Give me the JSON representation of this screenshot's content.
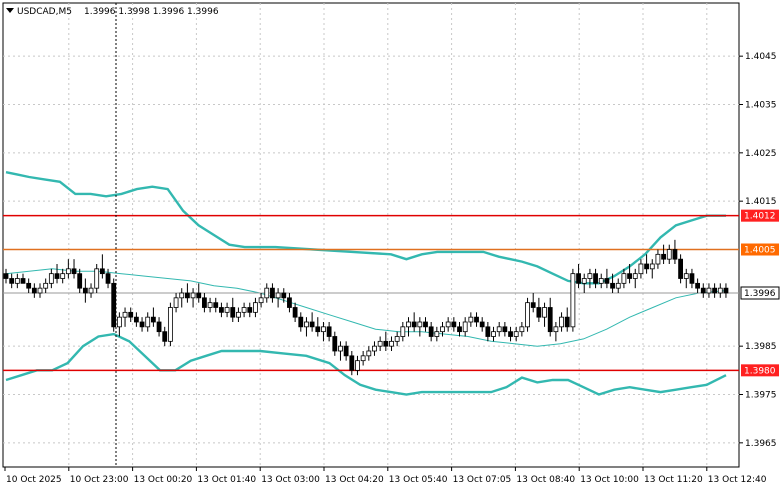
{
  "header": {
    "symbol": "USDCAD,M5",
    "ohlc": "1.3996 1.3998 1.3996 1.3996",
    "dropdown_icon": "triangle-down-icon"
  },
  "chart_data": {
    "type": "candlestick",
    "symbol": "USDCAD",
    "timeframe": "M5",
    "ylim": [
      1.396,
      1.4056
    ],
    "y_ticks": [
      "1.4045",
      "1.4035",
      "1.4025",
      "1.4015",
      "1.3985",
      "1.3975",
      "1.3965"
    ],
    "x_ticks": [
      "10 Oct 2025",
      "10 Oct 23:00",
      "13 Oct 00:20",
      "13 Oct 01:40",
      "13 Oct 03:00",
      "13 Oct 04:20",
      "13 Oct 05:40",
      "13 Oct 07:05",
      "13 Oct 08:40",
      "13 Oct 10:00",
      "13 Oct 11:20",
      "13 Oct 12:40"
    ],
    "levels": [
      {
        "label": "1.4012",
        "value": 1.4012,
        "color": "#e00000",
        "bg": "#ff2020",
        "text_color": "#ffffff"
      },
      {
        "label": "1.4005",
        "value": 1.4005,
        "color": "#e07020",
        "bg": "#ff6a00",
        "text_color": "#ffffff"
      },
      {
        "label": "1.3980",
        "value": 1.398,
        "color": "#e00000",
        "bg": "#ff2020",
        "text_color": "#ffffff"
      }
    ],
    "current_price": {
      "label": "1.3996",
      "value": 1.3996,
      "bg": "#ffffff",
      "text_color": "#000000"
    },
    "colors": {
      "band": "#33b8b0",
      "middle": "#33b8b0",
      "bull": "#000000",
      "bear": "#000000",
      "bull_body": "#ffffff",
      "bear_body": "#000000",
      "grid": "#c8c8c8",
      "vline": "#000000"
    },
    "bands": {
      "upper": [
        [
          0,
          1.4021
        ],
        [
          3,
          1.40205
        ],
        [
          6,
          1.402
        ],
        [
          10,
          1.40195
        ],
        [
          14,
          1.4019
        ],
        [
          18,
          1.40165
        ],
        [
          22,
          1.40165
        ],
        [
          26,
          1.4016
        ],
        [
          30,
          1.40165
        ],
        [
          34,
          1.40175
        ],
        [
          38,
          1.4018
        ],
        [
          42,
          1.40175
        ],
        [
          46,
          1.4013
        ],
        [
          50,
          1.401
        ],
        [
          54,
          1.4008
        ],
        [
          58,
          1.4006
        ],
        [
          62,
          1.40055
        ],
        [
          70,
          1.40055
        ],
        [
          80,
          1.4005
        ],
        [
          90,
          1.40045
        ],
        [
          100,
          1.4004
        ],
        [
          104,
          1.4003
        ],
        [
          108,
          1.4004
        ],
        [
          112,
          1.40045
        ],
        [
          118,
          1.40045
        ],
        [
          124,
          1.40045
        ],
        [
          128,
          1.40035
        ],
        [
          134,
          1.40025
        ],
        [
          138,
          1.40015
        ],
        [
          142,
          1.4
        ],
        [
          146,
          1.39985
        ],
        [
          150,
          1.3998
        ],
        [
          154,
          1.3998
        ],
        [
          158,
          1.39995
        ],
        [
          162,
          1.40015
        ],
        [
          166,
          1.4004
        ],
        [
          170,
          1.40075
        ],
        [
          174,
          1.401
        ],
        [
          178,
          1.4011
        ],
        [
          182,
          1.4012
        ],
        [
          187,
          1.4012
        ]
      ],
      "middle": [
        [
          0,
          1.4
        ],
        [
          6,
          1.40005
        ],
        [
          12,
          1.4001
        ],
        [
          18,
          1.40005
        ],
        [
          24,
          1.40005
        ],
        [
          30,
          1.4
        ],
        [
          36,
          1.39995
        ],
        [
          42,
          1.3999
        ],
        [
          48,
          1.39985
        ],
        [
          54,
          1.39975
        ],
        [
          60,
          1.3997
        ],
        [
          66,
          1.3996
        ],
        [
          72,
          1.39945
        ],
        [
          78,
          1.3993
        ],
        [
          84,
          1.39915
        ],
        [
          90,
          1.399
        ],
        [
          96,
          1.39885
        ],
        [
          102,
          1.3988
        ],
        [
          108,
          1.3988
        ],
        [
          114,
          1.39875
        ],
        [
          120,
          1.3987
        ],
        [
          126,
          1.3986
        ],
        [
          132,
          1.39855
        ],
        [
          138,
          1.3985
        ],
        [
          144,
          1.39855
        ],
        [
          150,
          1.39865
        ],
        [
          156,
          1.39885
        ],
        [
          162,
          1.3991
        ],
        [
          168,
          1.3993
        ],
        [
          174,
          1.3995
        ],
        [
          180,
          1.3996
        ],
        [
          187,
          1.39965
        ]
      ],
      "lower": [
        [
          0,
          1.3978
        ],
        [
          4,
          1.3979
        ],
        [
          8,
          1.398
        ],
        [
          12,
          1.398
        ],
        [
          16,
          1.39815
        ],
        [
          20,
          1.3985
        ],
        [
          24,
          1.3987
        ],
        [
          28,
          1.39875
        ],
        [
          32,
          1.3986
        ],
        [
          36,
          1.3983
        ],
        [
          40,
          1.398
        ],
        [
          44,
          1.398
        ],
        [
          48,
          1.3982
        ],
        [
          52,
          1.3983
        ],
        [
          56,
          1.3984
        ],
        [
          60,
          1.3984
        ],
        [
          66,
          1.3984
        ],
        [
          72,
          1.39835
        ],
        [
          78,
          1.3983
        ],
        [
          84,
          1.39815
        ],
        [
          88,
          1.3979
        ],
        [
          92,
          1.3977
        ],
        [
          96,
          1.3976
        ],
        [
          100,
          1.39755
        ],
        [
          104,
          1.3975
        ],
        [
          108,
          1.39755
        ],
        [
          114,
          1.39755
        ],
        [
          120,
          1.39755
        ],
        [
          126,
          1.39755
        ],
        [
          130,
          1.39765
        ],
        [
          134,
          1.39785
        ],
        [
          138,
          1.39775
        ],
        [
          142,
          1.3978
        ],
        [
          146,
          1.3978
        ],
        [
          150,
          1.39765
        ],
        [
          154,
          1.3975
        ],
        [
          158,
          1.3976
        ],
        [
          162,
          1.39765
        ],
        [
          166,
          1.3976
        ],
        [
          170,
          1.39755
        ],
        [
          174,
          1.3976
        ],
        [
          178,
          1.39765
        ],
        [
          182,
          1.3977
        ],
        [
          187,
          1.3979
        ]
      ]
    },
    "candles": [
      [
        1.4,
        1.4001,
        1.3998,
        1.3999
      ],
      [
        1.3999,
        1.4,
        1.3997,
        1.3998
      ],
      [
        1.3998,
        1.4,
        1.3997,
        1.3999
      ],
      [
        1.3999,
        1.4,
        1.3998,
        1.3998
      ],
      [
        1.3998,
        1.3999,
        1.3996,
        1.3997
      ],
      [
        1.3997,
        1.3998,
        1.3995,
        1.3996
      ],
      [
        1.3996,
        1.3998,
        1.3995,
        1.3997
      ],
      [
        1.3997,
        1.3999,
        1.3996,
        1.3998
      ],
      [
        1.3998,
        1.4001,
        1.3997,
        1.4
      ],
      [
        1.4,
        1.4002,
        1.3998,
        1.3999
      ],
      [
        1.3999,
        1.4001,
        1.3998,
        1.4
      ],
      [
        1.4,
        1.4003,
        1.3999,
        1.4001
      ],
      [
        1.4001,
        1.4003,
        1.3999,
        1.4
      ],
      [
        1.4,
        1.4001,
        1.3996,
        1.3997
      ],
      [
        1.3997,
        1.3999,
        1.3994,
        1.3996
      ],
      [
        1.3996,
        1.3998,
        1.3995,
        1.3997
      ],
      [
        1.3997,
        1.4002,
        1.3996,
        1.4001
      ],
      [
        1.4001,
        1.4004,
        1.3999,
        1.4
      ],
      [
        1.4,
        1.4001,
        1.3997,
        1.3998
      ],
      [
        1.3998,
        1.3999,
        1.3988,
        1.3989
      ],
      [
        1.3989,
        1.3992,
        1.3987,
        1.3991
      ],
      [
        1.3991,
        1.3993,
        1.3989,
        1.3992
      ],
      [
        1.3992,
        1.3993,
        1.399,
        1.3991
      ],
      [
        1.3991,
        1.3992,
        1.3989,
        1.399
      ],
      [
        1.399,
        1.3991,
        1.3988,
        1.3989
      ],
      [
        1.3989,
        1.3992,
        1.3988,
        1.3991
      ],
      [
        1.3991,
        1.3993,
        1.3989,
        1.399
      ],
      [
        1.399,
        1.3991,
        1.3987,
        1.3988
      ],
      [
        1.3988,
        1.3989,
        1.3985,
        1.3986
      ],
      [
        1.3986,
        1.3994,
        1.3985,
        1.3993
      ],
      [
        1.3993,
        1.3996,
        1.3992,
        1.3995
      ],
      [
        1.3995,
        1.3997,
        1.3993,
        1.3996
      ],
      [
        1.3996,
        1.3998,
        1.3994,
        1.3995
      ],
      [
        1.3995,
        1.3997,
        1.3993,
        1.3996
      ],
      [
        1.3996,
        1.3998,
        1.3994,
        1.3995
      ],
      [
        1.3995,
        1.3996,
        1.3992,
        1.3993
      ],
      [
        1.3993,
        1.3995,
        1.3992,
        1.3994
      ],
      [
        1.3994,
        1.3995,
        1.3992,
        1.3993
      ],
      [
        1.3993,
        1.3994,
        1.3991,
        1.3992
      ],
      [
        1.3992,
        1.3994,
        1.3991,
        1.3993
      ],
      [
        1.3993,
        1.3995,
        1.399,
        1.3991
      ],
      [
        1.3991,
        1.3993,
        1.399,
        1.3992
      ],
      [
        1.3992,
        1.3994,
        1.3991,
        1.3993
      ],
      [
        1.3993,
        1.3994,
        1.3991,
        1.3992
      ],
      [
        1.3992,
        1.3995,
        1.3991,
        1.3994
      ],
      [
        1.3994,
        1.3996,
        1.3993,
        1.3995
      ],
      [
        1.3995,
        1.3998,
        1.3994,
        1.3997
      ],
      [
        1.3997,
        1.3998,
        1.3994,
        1.3995
      ],
      [
        1.3995,
        1.3997,
        1.3993,
        1.3996
      ],
      [
        1.3996,
        1.3997,
        1.3994,
        1.3995
      ],
      [
        1.3995,
        1.3996,
        1.3992,
        1.3993
      ],
      [
        1.3993,
        1.3994,
        1.399,
        1.3991
      ],
      [
        1.3991,
        1.3992,
        1.3988,
        1.3989
      ],
      [
        1.3989,
        1.3991,
        1.3987,
        1.399
      ],
      [
        1.399,
        1.3992,
        1.3988,
        1.3989
      ],
      [
        1.3989,
        1.3991,
        1.3987,
        1.3988
      ],
      [
        1.3988,
        1.399,
        1.3986,
        1.3989
      ],
      [
        1.3989,
        1.399,
        1.3986,
        1.3987
      ],
      [
        1.3987,
        1.3988,
        1.3983,
        1.3984
      ],
      [
        1.3984,
        1.3986,
        1.3982,
        1.3985
      ],
      [
        1.3985,
        1.3986,
        1.3982,
        1.3983
      ],
      [
        1.3983,
        1.3984,
        1.3979,
        1.398
      ],
      [
        1.398,
        1.3983,
        1.3979,
        1.3982
      ],
      [
        1.3982,
        1.3984,
        1.3981,
        1.3983
      ],
      [
        1.3983,
        1.3985,
        1.3982,
        1.3984
      ],
      [
        1.3984,
        1.3986,
        1.3983,
        1.3985
      ],
      [
        1.3985,
        1.3987,
        1.3984,
        1.3986
      ],
      [
        1.3986,
        1.3988,
        1.3984,
        1.3985
      ],
      [
        1.3985,
        1.3987,
        1.3984,
        1.3986
      ],
      [
        1.3986,
        1.3988,
        1.3985,
        1.3987
      ],
      [
        1.3987,
        1.399,
        1.3986,
        1.3989
      ],
      [
        1.3989,
        1.3991,
        1.3987,
        1.399
      ],
      [
        1.399,
        1.3992,
        1.3988,
        1.3989
      ],
      [
        1.3989,
        1.3991,
        1.3987,
        1.399
      ],
      [
        1.399,
        1.3991,
        1.3988,
        1.3989
      ],
      [
        1.3989,
        1.399,
        1.3986,
        1.3987
      ],
      [
        1.3987,
        1.3989,
        1.3986,
        1.3988
      ],
      [
        1.3988,
        1.399,
        1.3987,
        1.3989
      ],
      [
        1.3989,
        1.3991,
        1.3988,
        1.399
      ],
      [
        1.399,
        1.3991,
        1.3988,
        1.3989
      ],
      [
        1.3989,
        1.399,
        1.3987,
        1.3988
      ],
      [
        1.3988,
        1.3991,
        1.3987,
        1.399
      ],
      [
        1.399,
        1.3992,
        1.3989,
        1.3991
      ],
      [
        1.3991,
        1.3992,
        1.3989,
        1.399
      ],
      [
        1.399,
        1.3991,
        1.3988,
        1.3989
      ],
      [
        1.3989,
        1.399,
        1.3986,
        1.3987
      ],
      [
        1.3987,
        1.3989,
        1.3986,
        1.3988
      ],
      [
        1.3988,
        1.399,
        1.3987,
        1.3989
      ],
      [
        1.3989,
        1.399,
        1.3987,
        1.3988
      ],
      [
        1.3988,
        1.3989,
        1.3986,
        1.3987
      ],
      [
        1.3987,
        1.3989,
        1.3986,
        1.3988
      ],
      [
        1.3988,
        1.399,
        1.3987,
        1.3989
      ],
      [
        1.3989,
        1.3995,
        1.3988,
        1.3994
      ],
      [
        1.3994,
        1.3996,
        1.3992,
        1.3993
      ],
      [
        1.3993,
        1.3995,
        1.399,
        1.3991
      ],
      [
        1.3991,
        1.3994,
        1.3989,
        1.3993
      ],
      [
        1.3993,
        1.3995,
        1.3987,
        1.3988
      ],
      [
        1.3988,
        1.399,
        1.3986,
        1.3989
      ],
      [
        1.3989,
        1.3992,
        1.3988,
        1.3991
      ],
      [
        1.3991,
        1.3993,
        1.3988,
        1.3989
      ],
      [
        1.3989,
        1.4001,
        1.3988,
        1.4
      ],
      [
        1.4,
        1.4002,
        1.3997,
        1.3998
      ],
      [
        1.3998,
        1.4,
        1.3996,
        1.3999
      ],
      [
        1.3999,
        1.4001,
        1.3997,
        1.4
      ],
      [
        1.4,
        1.4001,
        1.3997,
        1.3998
      ],
      [
        1.3998,
        1.4,
        1.3997,
        1.3999
      ],
      [
        1.3999,
        1.4001,
        1.3997,
        1.3998
      ],
      [
        1.3998,
        1.4,
        1.3996,
        1.3997
      ],
      [
        1.3997,
        1.3999,
        1.3996,
        1.3998
      ],
      [
        1.3998,
        1.4001,
        1.3997,
        1.4
      ],
      [
        1.4,
        1.4002,
        1.3998,
        1.3999
      ],
      [
        1.3999,
        1.4001,
        1.3997,
        1.4
      ],
      [
        1.4,
        1.4003,
        1.3999,
        1.4002
      ],
      [
        1.4002,
        1.4004,
        1.4,
        1.4001
      ],
      [
        1.4001,
        1.4003,
        1.3999,
        1.4002
      ],
      [
        1.4002,
        1.4005,
        1.4001,
        1.4004
      ],
      [
        1.4004,
        1.4006,
        1.4002,
        1.4003
      ],
      [
        1.4003,
        1.4006,
        1.4002,
        1.4005
      ],
      [
        1.4005,
        1.4007,
        1.4002,
        1.4003
      ],
      [
        1.4003,
        1.4004,
        1.3998,
        1.3999
      ],
      [
        1.3999,
        1.4001,
        1.3997,
        1.4
      ],
      [
        1.4,
        1.4001,
        1.3997,
        1.3998
      ],
      [
        1.3998,
        1.3999,
        1.3996,
        1.3997
      ],
      [
        1.3997,
        1.3998,
        1.3995,
        1.3996
      ],
      [
        1.3996,
        1.3998,
        1.3995,
        1.3997
      ],
      [
        1.3997,
        1.3998,
        1.3995,
        1.3996
      ],
      [
        1.3996,
        1.3998,
        1.3995,
        1.3997
      ],
      [
        1.3997,
        1.3998,
        1.3995,
        1.3996
      ]
    ]
  }
}
